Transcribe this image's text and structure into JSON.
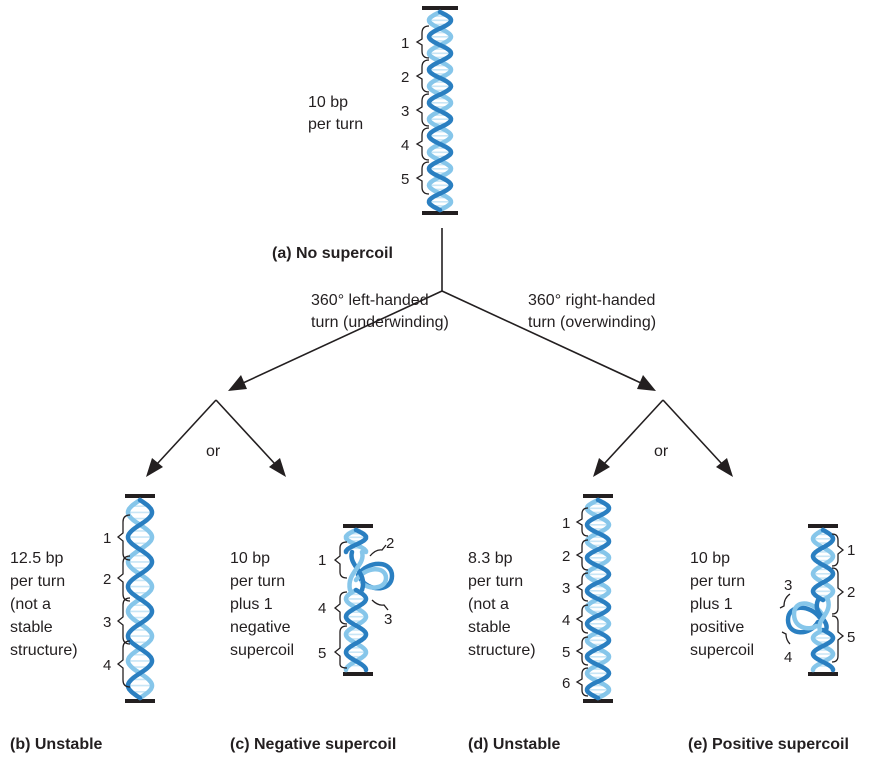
{
  "captions": {
    "a": "(a) No supercoil",
    "b": "(b) Unstable",
    "c": "(c) Negative supercoil",
    "d": "(d) Unstable",
    "e": "(e) Positive supercoil"
  },
  "branches": {
    "left": [
      "360° left-handed",
      "turn (underwinding)"
    ],
    "right": [
      "360° right-handed",
      "turn (overwinding)"
    ],
    "or": "or"
  },
  "descriptions": {
    "a": [
      "10 bp",
      "per turn"
    ],
    "b": [
      "12.5 bp",
      "per turn",
      "(not a",
      "stable",
      "structure)"
    ],
    "c": [
      "10 bp",
      "per turn",
      "plus 1",
      "negative",
      "supercoil"
    ],
    "d": [
      "8.3 bp",
      "per turn",
      "(not a",
      "stable",
      "structure)"
    ],
    "e": [
      "10 bp",
      "per turn",
      "plus 1",
      "positive",
      "supercoil"
    ]
  },
  "turn_numbers": {
    "a": [
      "1",
      "2",
      "3",
      "4",
      "5"
    ],
    "b": [
      "1",
      "2",
      "3",
      "4"
    ],
    "c": [
      "1",
      "2",
      "3",
      "4",
      "5"
    ],
    "d": [
      "1",
      "2",
      "3",
      "4",
      "5",
      "6"
    ],
    "e": [
      "1",
      "2",
      "3",
      "4",
      "5"
    ]
  },
  "colors": {
    "strand_dark": "#2a7fc1",
    "strand_light": "#86c6ea",
    "text": "#231f20"
  }
}
